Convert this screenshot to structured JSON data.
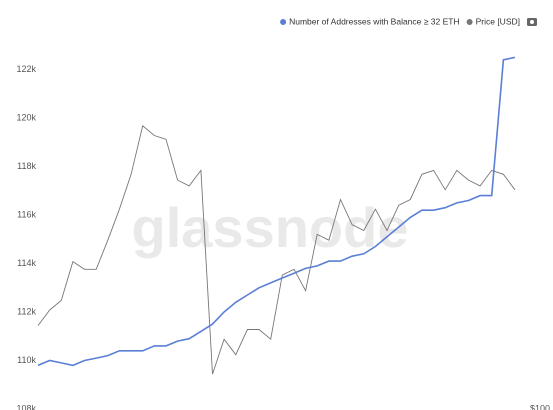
{
  "chart_data": {
    "type": "line",
    "watermark": "glassnode",
    "categories": [
      null,
      null,
      null,
      null,
      null,
      null,
      null,
      null,
      null,
      null,
      null,
      null,
      null,
      null,
      null,
      null,
      null,
      null,
      null,
      null,
      null,
      null,
      null,
      null,
      null,
      null,
      null,
      null,
      null,
      null,
      null,
      null,
      null,
      null,
      null,
      null,
      null,
      null,
      null,
      null,
      null,
      null
    ],
    "series": [
      {
        "name": "Number of Addresses with Balance ≥ 32 ETH",
        "color": "#5b7fd6",
        "values": [
          109800,
          110000,
          109900,
          109800,
          110000,
          110100,
          110200,
          110400,
          110400,
          110400,
          110600,
          110600,
          110800,
          110900,
          111200,
          111500,
          112000,
          112400,
          112700,
          113000,
          113200,
          113400,
          113600,
          113800,
          113900,
          114100,
          114100,
          114300,
          114400,
          114700,
          115100,
          115500,
          115900,
          116200,
          116200,
          116300,
          116500,
          116600,
          116800,
          116800,
          122400,
          122500
        ]
      },
      {
        "name": "Price [USD]",
        "color": "#777777",
        "axis": "y2",
        "values": [
          143,
          151,
          156,
          176,
          172,
          172,
          187,
          203,
          221,
          246,
          241,
          239,
          218,
          215,
          223,
          118,
          136,
          128,
          141,
          141,
          136,
          169,
          172,
          161,
          190,
          187,
          208,
          195,
          192,
          203,
          192,
          205,
          208,
          221,
          223,
          213,
          223,
          218,
          215,
          223,
          221,
          213
        ]
      }
    ],
    "ylim": [
      108000,
      124000
    ],
    "yticks": [
      {
        "value": 108000,
        "label": "108k"
      },
      {
        "value": 110000,
        "label": "110k"
      },
      {
        "value": 112000,
        "label": "112k"
      },
      {
        "value": 114000,
        "label": "114k"
      },
      {
        "value": 116000,
        "label": "116k"
      },
      {
        "value": 118000,
        "label": "118k"
      },
      {
        "value": 120000,
        "label": "120k"
      },
      {
        "value": 122000,
        "label": "122k"
      }
    ],
    "y2lim": [
      100,
      300
    ],
    "y2ticks": [
      {
        "value": 100,
        "label": "$100"
      }
    ],
    "grid": false,
    "legend": "top-right"
  }
}
